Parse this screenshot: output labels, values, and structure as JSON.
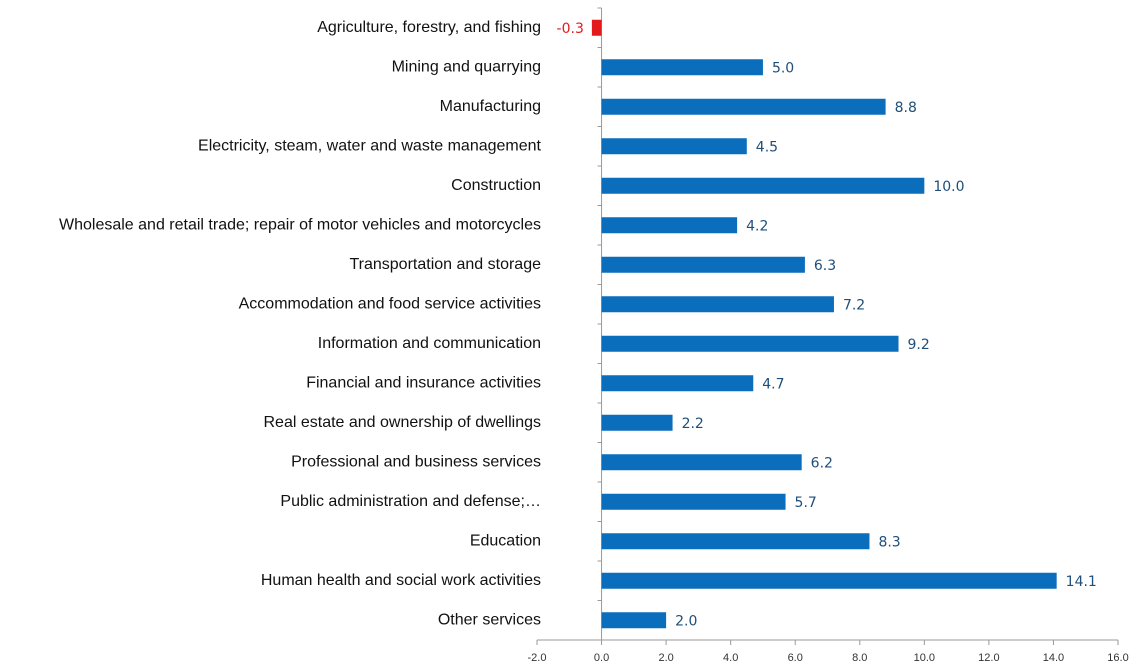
{
  "chart_data": {
    "type": "barh",
    "categories": [
      "Agriculture, forestry, and fishing",
      "Mining and quarrying",
      "Manufacturing",
      "Electricity, steam, water and waste management",
      "Construction",
      "Wholesale and retail trade; repair of motor vehicles and motorcycles",
      "Transportation and storage",
      "Accommodation and food service activities",
      "Information and communication",
      "Financial and insurance activities",
      "Real estate and ownership of dwellings",
      "Professional and business services",
      "Public administration and defense;…",
      "Education",
      "Human health and social work activities",
      "Other services"
    ],
    "values": [
      -0.3,
      5.0,
      8.8,
      4.5,
      10.0,
      4.2,
      6.3,
      7.2,
      9.2,
      4.7,
      2.2,
      6.2,
      5.7,
      8.3,
      14.1,
      2.0
    ],
    "value_labels": [
      "-0.3",
      "5.0",
      "8.8",
      "4.5",
      "10.0",
      "4.2",
      "6.3",
      "7.2",
      "9.2",
      "4.7",
      "2.2",
      "6.2",
      "5.7",
      "8.3",
      "14.1",
      "2.0"
    ],
    "colors": [
      "#e31a1c",
      "#0a6ebd",
      "#0a6ebd",
      "#0a6ebd",
      "#0a6ebd",
      "#0a6ebd",
      "#0a6ebd",
      "#0a6ebd",
      "#0a6ebd",
      "#0a6ebd",
      "#0a6ebd",
      "#0a6ebd",
      "#0a6ebd",
      "#0a6ebd",
      "#0a6ebd",
      "#0a6ebd"
    ],
    "xlim": [
      -2,
      16
    ],
    "xticks": [
      {
        "value": -2,
        "label": "-2.0"
      },
      {
        "value": 0,
        "label": "0.0"
      },
      {
        "value": 2,
        "label": "2.0"
      },
      {
        "value": 4,
        "label": "4.0"
      },
      {
        "value": 6,
        "label": "6.0"
      },
      {
        "value": 8,
        "label": "8.0"
      },
      {
        "value": 10,
        "label": "10.0"
      },
      {
        "value": 12,
        "label": "12.0"
      },
      {
        "value": 14,
        "label": "14.0"
      },
      {
        "value": 16,
        "label": "16.0"
      }
    ],
    "grid": false
  }
}
